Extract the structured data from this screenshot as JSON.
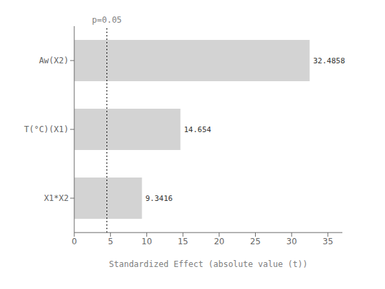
{
  "chart_data": {
    "type": "bar",
    "orientation": "horizontal",
    "categories": [
      "X1*X2",
      "T(°C)(X1)",
      "Aw(X2)"
    ],
    "values": [
      9.3416,
      14.654,
      32.4858
    ],
    "color": "#d3d3d3",
    "data_labels": true,
    "xlabel": "Standardized Effect (absolute value (t))",
    "xlim": [
      0,
      37
    ],
    "xticks": [
      0,
      5,
      10,
      15,
      20,
      25,
      30,
      35
    ],
    "annotations": [
      {
        "type": "vline",
        "x": 4.5,
        "label": "p=0.05"
      }
    ]
  }
}
